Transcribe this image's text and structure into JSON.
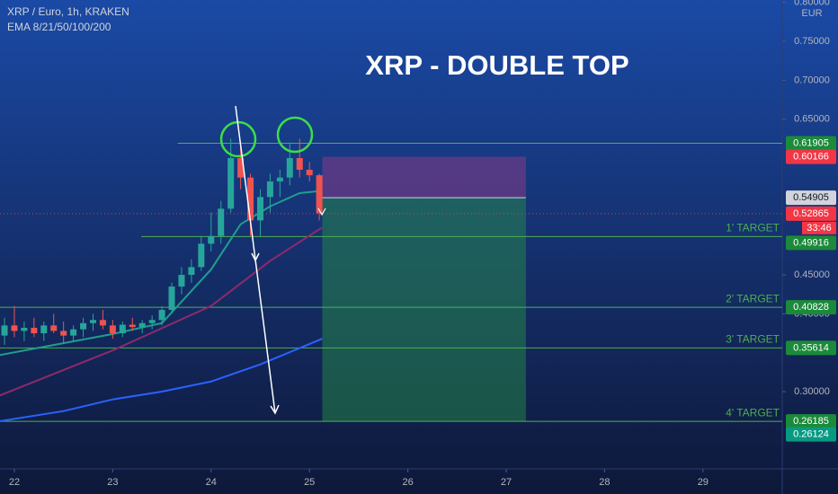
{
  "chart_data": {
    "type": "candlestick",
    "header": "XRP / Euro, 1h, KRAKEN",
    "indicator": "EMA 8/21/50/100/200",
    "title": "XRP - DOUBLE TOP",
    "currency": "EUR",
    "x": [
      21.9,
      22.0,
      22.1,
      22.2,
      22.3,
      22.4,
      22.5,
      22.6,
      22.7,
      22.8,
      22.9,
      23.0,
      23.1,
      23.2,
      23.3,
      23.4,
      23.5,
      23.6,
      23.7,
      23.8,
      23.9,
      24.0,
      24.1,
      24.2,
      24.3,
      24.4,
      24.5,
      24.6,
      24.7,
      24.8,
      24.9,
      25.0,
      25.1
    ],
    "open": [
      0.372,
      0.385,
      0.378,
      0.382,
      0.375,
      0.385,
      0.378,
      0.372,
      0.38,
      0.388,
      0.392,
      0.385,
      0.375,
      0.386,
      0.383,
      0.388,
      0.392,
      0.405,
      0.435,
      0.45,
      0.46,
      0.49,
      0.5,
      0.535,
      0.6,
      0.575,
      0.52,
      0.55,
      0.57,
      0.575,
      0.6,
      0.585,
      0.578
    ],
    "high": [
      0.395,
      0.41,
      0.39,
      0.395,
      0.39,
      0.4,
      0.39,
      0.385,
      0.395,
      0.4,
      0.405,
      0.392,
      0.39,
      0.395,
      0.392,
      0.398,
      0.41,
      0.44,
      0.46,
      0.47,
      0.5,
      0.53,
      0.545,
      0.625,
      0.615,
      0.58,
      0.56,
      0.58,
      0.585,
      0.62,
      0.625,
      0.595,
      0.58
    ],
    "low": [
      0.36,
      0.37,
      0.365,
      0.37,
      0.365,
      0.375,
      0.362,
      0.365,
      0.37,
      0.378,
      0.38,
      0.368,
      0.37,
      0.378,
      0.375,
      0.38,
      0.385,
      0.4,
      0.425,
      0.44,
      0.455,
      0.48,
      0.49,
      0.53,
      0.56,
      0.5,
      0.5,
      0.53,
      0.55,
      0.565,
      0.575,
      0.57,
      0.52
    ],
    "close": [
      0.385,
      0.378,
      0.382,
      0.375,
      0.385,
      0.378,
      0.372,
      0.38,
      0.388,
      0.392,
      0.385,
      0.375,
      0.386,
      0.383,
      0.388,
      0.392,
      0.405,
      0.435,
      0.45,
      0.46,
      0.49,
      0.5,
      0.535,
      0.6,
      0.575,
      0.52,
      0.55,
      0.57,
      0.575,
      0.6,
      0.585,
      0.578,
      0.529
    ],
    "up_color": "#26a69a",
    "down_color": "#ef5350",
    "lines": [
      {
        "color": "#2962ff",
        "x": [
          21.85,
          22.5,
          23.0,
          23.5,
          24.0,
          24.5,
          25.13
        ],
        "values": [
          0.262,
          0.275,
          0.29,
          0.3,
          0.313,
          0.335,
          0.368
        ]
      },
      {
        "color": "#8e2a6b",
        "x": [
          21.85,
          23.0,
          24.0,
          24.6,
          25.13
        ],
        "values": [
          0.295,
          0.353,
          0.41,
          0.468,
          0.511
        ]
      },
      {
        "color": "#1f9e8f",
        "x": [
          21.85,
          23.0,
          23.5,
          24.0,
          24.3,
          24.6,
          24.9,
          25.13
        ],
        "values": [
          0.347,
          0.374,
          0.388,
          0.457,
          0.515,
          0.538,
          0.555,
          0.558
        ]
      }
    ],
    "levels": [
      {
        "value": 0.61905,
        "x_start": 23.66
      },
      {
        "value": 0.49916,
        "x_start": 23.29,
        "label": "1' TARGET"
      },
      {
        "value": 0.40828,
        "x_start": 21.85,
        "label": "2' TARGET"
      },
      {
        "value": 0.35614,
        "x_start": 21.85,
        "label": "3' TARGET"
      },
      {
        "value": 0.26185,
        "x_start": 21.85,
        "label": "4' TARGET"
      }
    ],
    "level_color": "#4caf50",
    "position": {
      "x": [
        25.13,
        27.2
      ],
      "entry": 0.54905,
      "stop": 0.60166,
      "target": 0.26185
    },
    "current": {
      "value": 0.52865,
      "countdown": "33:46",
      "color": "#f23645"
    },
    "extra_price": {
      "value": 0.26124,
      "color": "#089981"
    },
    "xlim": [
      21.854,
      29.806
    ],
    "xticks": [
      22,
      23,
      24,
      25,
      26,
      27,
      28,
      29
    ],
    "ylim": [
      0.2008,
      0.8031
    ],
    "yticks": [
      {
        "value": 0.3,
        "label": "0.30000"
      },
      {
        "value": 0.4,
        "label": "0.40000"
      },
      {
        "value": 0.45,
        "label": "0.45000"
      },
      {
        "value": 0.65,
        "label": "0.65000"
      },
      {
        "value": 0.7,
        "label": "0.70000"
      },
      {
        "value": 0.75,
        "label": "0.75000"
      },
      {
        "value": 0.8,
        "label": "0.80000"
      }
    ]
  }
}
